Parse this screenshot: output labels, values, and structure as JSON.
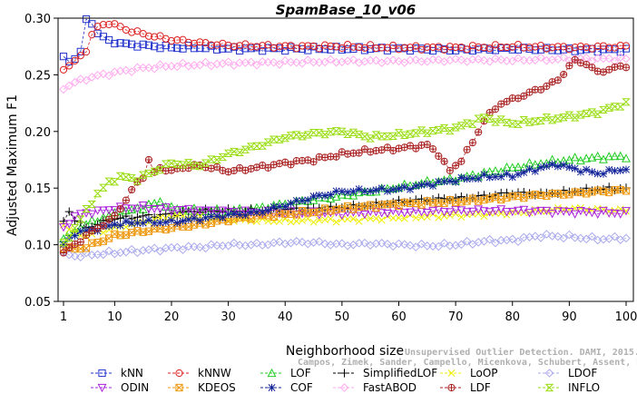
{
  "chart_data": {
    "type": "line",
    "title": "SpamBase_10_v06",
    "xlabel": "Neighborhood size",
    "ylabel": "Adjusted Maximum F1",
    "xlim": [
      1,
      100
    ],
    "ylim": [
      0.05,
      0.3
    ],
    "xticks": [
      1,
      10,
      20,
      30,
      40,
      50,
      60,
      70,
      80,
      90,
      100
    ],
    "yticks": [
      0.05,
      0.1,
      0.15,
      0.2,
      0.25,
      0.3
    ],
    "ytick_labels": [
      "0.05",
      "0.10",
      "0.15",
      "0.20",
      "0.25",
      "0.30"
    ],
    "grid": false,
    "legend_position": "bottom",
    "watermark": [
      "Campos, Zimek, Sander, Campello, Micenkova, Schubert, Assent, Houle",
      "Unsupervised Outlier Detection. DAMI, 2015."
    ],
    "series": [
      {
        "name": "kNN",
        "color": "#2233cc",
        "marker": "square",
        "points": [
          [
            1,
            0.265
          ],
          [
            2,
            0.262
          ],
          [
            3,
            0.265
          ],
          [
            4,
            0.27
          ],
          [
            5,
            0.298
          ],
          [
            6,
            0.296
          ],
          [
            7,
            0.287
          ],
          [
            8,
            0.283
          ],
          [
            9,
            0.28
          ],
          [
            10,
            0.279
          ],
          [
            12,
            0.277
          ],
          [
            15,
            0.276
          ],
          [
            20,
            0.274
          ],
          [
            25,
            0.274
          ],
          [
            30,
            0.273
          ],
          [
            40,
            0.273
          ],
          [
            50,
            0.273
          ],
          [
            60,
            0.273
          ],
          [
            70,
            0.272
          ],
          [
            80,
            0.273
          ],
          [
            90,
            0.272
          ],
          [
            100,
            0.272
          ]
        ]
      },
      {
        "name": "kNNW",
        "color": "#dd2222",
        "marker": "circle",
        "points": [
          [
            1,
            0.256
          ],
          [
            2,
            0.258
          ],
          [
            3,
            0.262
          ],
          [
            4,
            0.266
          ],
          [
            5,
            0.272
          ],
          [
            6,
            0.285
          ],
          [
            7,
            0.292
          ],
          [
            8,
            0.294
          ],
          [
            9,
            0.296
          ],
          [
            10,
            0.294
          ],
          [
            12,
            0.29
          ],
          [
            15,
            0.286
          ],
          [
            20,
            0.281
          ],
          [
            25,
            0.278
          ],
          [
            30,
            0.276
          ],
          [
            40,
            0.275
          ],
          [
            50,
            0.275
          ],
          [
            60,
            0.274
          ],
          [
            70,
            0.274
          ],
          [
            80,
            0.275
          ],
          [
            90,
            0.274
          ],
          [
            100,
            0.275
          ]
        ]
      },
      {
        "name": "LOF",
        "color": "#22cc22",
        "marker": "triangle-up",
        "points": [
          [
            1,
            0.106
          ],
          [
            3,
            0.112
          ],
          [
            5,
            0.118
          ],
          [
            8,
            0.124
          ],
          [
            10,
            0.127
          ],
          [
            15,
            0.133
          ],
          [
            18,
            0.138
          ],
          [
            20,
            0.132
          ],
          [
            25,
            0.13
          ],
          [
            30,
            0.13
          ],
          [
            35,
            0.132
          ],
          [
            40,
            0.136
          ],
          [
            45,
            0.14
          ],
          [
            50,
            0.143
          ],
          [
            55,
            0.147
          ],
          [
            60,
            0.151
          ],
          [
            65,
            0.155
          ],
          [
            70,
            0.158
          ],
          [
            75,
            0.163
          ],
          [
            80,
            0.168
          ],
          [
            85,
            0.172
          ],
          [
            90,
            0.175
          ],
          [
            95,
            0.177
          ],
          [
            100,
            0.178
          ]
        ]
      },
      {
        "name": "SimplifiedLOF",
        "color": "#000000",
        "marker": "plus",
        "points": [
          [
            1,
            0.12
          ],
          [
            2,
            0.13
          ],
          [
            3,
            0.122
          ],
          [
            5,
            0.115
          ],
          [
            8,
            0.12
          ],
          [
            10,
            0.123
          ],
          [
            15,
            0.125
          ],
          [
            20,
            0.127
          ],
          [
            25,
            0.13
          ],
          [
            30,
            0.13
          ],
          [
            35,
            0.13
          ],
          [
            40,
            0.131
          ],
          [
            45,
            0.132
          ],
          [
            50,
            0.133
          ],
          [
            55,
            0.135
          ],
          [
            60,
            0.138
          ],
          [
            65,
            0.14
          ],
          [
            70,
            0.141
          ],
          [
            75,
            0.143
          ],
          [
            80,
            0.146
          ],
          [
            85,
            0.145
          ],
          [
            90,
            0.147
          ],
          [
            95,
            0.149
          ],
          [
            100,
            0.15
          ]
        ]
      },
      {
        "name": "LoOP",
        "color": "#eeee00",
        "marker": "x",
        "points": [
          [
            1,
            0.118
          ],
          [
            3,
            0.11
          ],
          [
            5,
            0.108
          ],
          [
            8,
            0.112
          ],
          [
            10,
            0.115
          ],
          [
            15,
            0.12
          ],
          [
            20,
            0.125
          ],
          [
            25,
            0.124
          ],
          [
            30,
            0.122
          ],
          [
            40,
            0.121
          ],
          [
            50,
            0.122
          ],
          [
            60,
            0.124
          ],
          [
            70,
            0.126
          ],
          [
            80,
            0.128
          ],
          [
            90,
            0.132
          ],
          [
            100,
            0.13
          ]
        ]
      },
      {
        "name": "LDOF",
        "color": "#aaaaee",
        "marker": "diamond",
        "points": [
          [
            1,
            0.092
          ],
          [
            3,
            0.09
          ],
          [
            5,
            0.091
          ],
          [
            10,
            0.093
          ],
          [
            15,
            0.095
          ],
          [
            20,
            0.097
          ],
          [
            25,
            0.098
          ],
          [
            30,
            0.1
          ],
          [
            35,
            0.1
          ],
          [
            40,
            0.102
          ],
          [
            45,
            0.102
          ],
          [
            50,
            0.1
          ],
          [
            55,
            0.101
          ],
          [
            60,
            0.1
          ],
          [
            65,
            0.099
          ],
          [
            70,
            0.1
          ],
          [
            75,
            0.103
          ],
          [
            80,
            0.104
          ],
          [
            85,
            0.108
          ],
          [
            90,
            0.107
          ],
          [
            95,
            0.105
          ],
          [
            100,
            0.106
          ]
        ]
      },
      {
        "name": "ODIN",
        "color": "#aa22dd",
        "marker": "triangle-down",
        "points": [
          [
            1,
            0.115
          ],
          [
            3,
            0.125
          ],
          [
            5,
            0.128
          ],
          [
            8,
            0.13
          ],
          [
            10,
            0.132
          ],
          [
            15,
            0.133
          ],
          [
            20,
            0.131
          ],
          [
            25,
            0.13
          ],
          [
            30,
            0.129
          ],
          [
            40,
            0.128
          ],
          [
            50,
            0.128
          ],
          [
            60,
            0.129
          ],
          [
            70,
            0.13
          ],
          [
            80,
            0.13
          ],
          [
            90,
            0.129
          ],
          [
            100,
            0.128
          ]
        ]
      },
      {
        "name": "KDEOS",
        "color": "#ee9911",
        "marker": "square-x",
        "points": [
          [
            1,
            0.098
          ],
          [
            3,
            0.096
          ],
          [
            5,
            0.098
          ],
          [
            8,
            0.104
          ],
          [
            10,
            0.108
          ],
          [
            15,
            0.112
          ],
          [
            20,
            0.115
          ],
          [
            25,
            0.118
          ],
          [
            30,
            0.122
          ],
          [
            35,
            0.125
          ],
          [
            40,
            0.127
          ],
          [
            45,
            0.129
          ],
          [
            50,
            0.132
          ],
          [
            55,
            0.134
          ],
          [
            60,
            0.136
          ],
          [
            65,
            0.137
          ],
          [
            70,
            0.138
          ],
          [
            75,
            0.14
          ],
          [
            80,
            0.142
          ],
          [
            85,
            0.144
          ],
          [
            90,
            0.145
          ],
          [
            95,
            0.147
          ],
          [
            100,
            0.148
          ]
        ]
      },
      {
        "name": "COF",
        "color": "#112299",
        "marker": "star",
        "points": [
          [
            1,
            0.1
          ],
          [
            3,
            0.11
          ],
          [
            5,
            0.112
          ],
          [
            8,
            0.115
          ],
          [
            10,
            0.118
          ],
          [
            15,
            0.12
          ],
          [
            20,
            0.12
          ],
          [
            25,
            0.123
          ],
          [
            30,
            0.126
          ],
          [
            35,
            0.128
          ],
          [
            40,
            0.135
          ],
          [
            45,
            0.142
          ],
          [
            50,
            0.147
          ],
          [
            55,
            0.148
          ],
          [
            60,
            0.149
          ],
          [
            65,
            0.153
          ],
          [
            70,
            0.157
          ],
          [
            75,
            0.16
          ],
          [
            80,
            0.161
          ],
          [
            85,
            0.168
          ],
          [
            88,
            0.171
          ],
          [
            90,
            0.168
          ],
          [
            95,
            0.163
          ],
          [
            100,
            0.167
          ]
        ]
      },
      {
        "name": "FastABOD",
        "color": "#ffaaee",
        "marker": "diamond",
        "points": [
          [
            1,
            0.238
          ],
          [
            2,
            0.241
          ],
          [
            4,
            0.245
          ],
          [
            6,
            0.248
          ],
          [
            8,
            0.25
          ],
          [
            10,
            0.252
          ],
          [
            15,
            0.256
          ],
          [
            20,
            0.258
          ],
          [
            25,
            0.259
          ],
          [
            30,
            0.26
          ],
          [
            40,
            0.261
          ],
          [
            50,
            0.262
          ],
          [
            60,
            0.262
          ],
          [
            70,
            0.263
          ],
          [
            80,
            0.263
          ],
          [
            90,
            0.264
          ],
          [
            100,
            0.264
          ]
        ]
      },
      {
        "name": "LDF",
        "color": "#aa2222",
        "marker": "circle-plus",
        "points": [
          [
            1,
            0.093
          ],
          [
            3,
            0.1
          ],
          [
            5,
            0.108
          ],
          [
            8,
            0.118
          ],
          [
            10,
            0.125
          ],
          [
            12,
            0.14
          ],
          [
            14,
            0.155
          ],
          [
            15,
            0.16
          ],
          [
            16,
            0.175
          ],
          [
            17,
            0.163
          ],
          [
            18,
            0.168
          ],
          [
            20,
            0.165
          ],
          [
            22,
            0.168
          ],
          [
            25,
            0.17
          ],
          [
            30,
            0.165
          ],
          [
            35,
            0.168
          ],
          [
            40,
            0.172
          ],
          [
            45,
            0.175
          ],
          [
            50,
            0.18
          ],
          [
            55,
            0.183
          ],
          [
            60,
            0.185
          ],
          [
            65,
            0.188
          ],
          [
            67,
            0.18
          ],
          [
            69,
            0.165
          ],
          [
            71,
            0.175
          ],
          [
            73,
            0.19
          ],
          [
            75,
            0.21
          ],
          [
            78,
            0.225
          ],
          [
            80,
            0.228
          ],
          [
            85,
            0.238
          ],
          [
            88,
            0.245
          ],
          [
            90,
            0.258
          ],
          [
            91,
            0.262
          ],
          [
            93,
            0.26
          ],
          [
            95,
            0.252
          ],
          [
            97,
            0.255
          ],
          [
            100,
            0.258
          ]
        ]
      },
      {
        "name": "INFLO",
        "color": "#99dd11",
        "marker": "hourglass",
        "points": [
          [
            1,
            0.1
          ],
          [
            3,
            0.115
          ],
          [
            5,
            0.13
          ],
          [
            7,
            0.145
          ],
          [
            9,
            0.155
          ],
          [
            11,
            0.16
          ],
          [
            14,
            0.158
          ],
          [
            17,
            0.165
          ],
          [
            20,
            0.172
          ],
          [
            25,
            0.17
          ],
          [
            30,
            0.18
          ],
          [
            35,
            0.187
          ],
          [
            40,
            0.195
          ],
          [
            45,
            0.198
          ],
          [
            50,
            0.2
          ],
          [
            55,
            0.195
          ],
          [
            60,
            0.197
          ],
          [
            65,
            0.2
          ],
          [
            70,
            0.203
          ],
          [
            75,
            0.212
          ],
          [
            80,
            0.207
          ],
          [
            85,
            0.21
          ],
          [
            90,
            0.213
          ],
          [
            95,
            0.217
          ],
          [
            100,
            0.225
          ]
        ]
      }
    ]
  }
}
